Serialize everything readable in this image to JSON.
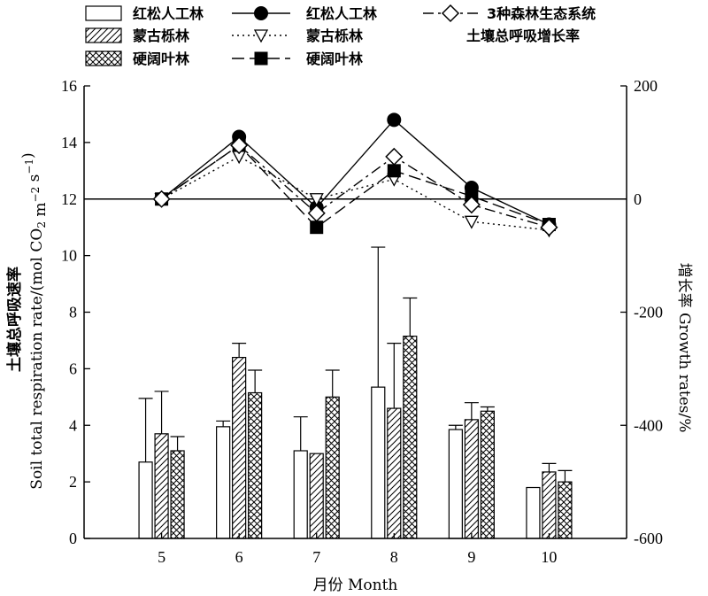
{
  "chart_data": {
    "type": "bar",
    "categories": [
      "5",
      "6",
      "7",
      "8",
      "9",
      "10"
    ],
    "xlabel": "月份 Month",
    "ylabel_cn": "土壤总呼吸速率",
    "ylabel_en_prefix": "Soil total respiration rate/(mol CO",
    "ylabel_sub2": "2",
    "ylabel_mid": " m",
    "ylabel_sup1": "−2",
    "ylabel_mid2": " s",
    "ylabel_sup2": "−1",
    "ylabel_end": ")",
    "y2label": "增长率 Growth rates/%",
    "ylim": [
      0,
      16
    ],
    "yticks": [
      "0",
      "2",
      "4",
      "6",
      "8",
      "10",
      "12",
      "14",
      "16"
    ],
    "y2lim": [
      -600,
      200
    ],
    "y2ticks": [
      "-600",
      "-400",
      "-200",
      "0",
      "200"
    ],
    "bar_series": [
      {
        "name": "红松人工林",
        "pattern": "open",
        "values": [
          2.7,
          3.95,
          3.1,
          5.35,
          3.85,
          1.8
        ],
        "errors": [
          2.25,
          0.2,
          1.2,
          4.95,
          0.15,
          0.0
        ]
      },
      {
        "name": "蒙古栎林",
        "pattern": "diagonal",
        "values": [
          3.7,
          6.4,
          3.0,
          4.6,
          4.2,
          2.35
        ],
        "errors": [
          1.5,
          0.5,
          0.0,
          2.3,
          0.6,
          0.3
        ]
      },
      {
        "name": "硬阔叶林",
        "pattern": "crosshatch",
        "values": [
          3.1,
          5.15,
          5.0,
          7.15,
          4.5,
          2.0
        ],
        "errors": [
          0.5,
          0.8,
          0.95,
          1.35,
          0.15,
          0.4
        ]
      }
    ],
    "line_series": [
      {
        "name": "红松人工林",
        "marker": "filled-circle",
        "dash": "solid",
        "values": [
          0,
          110,
          -15,
          140,
          20,
          -45
        ]
      },
      {
        "name": "蒙古栎林",
        "marker": "open-triangle-down",
        "dash": "dotted",
        "values": [
          0,
          75,
          0,
          35,
          -40,
          -55
        ]
      },
      {
        "name": "硬阔叶林",
        "marker": "filled-square",
        "dash": "long-dash",
        "values": [
          0,
          95,
          -50,
          50,
          5,
          -45
        ]
      },
      {
        "name": "3种森林生态系统",
        "name_line2": "土壤总呼吸增长率",
        "marker": "open-diamond",
        "dash": "dash-dot",
        "values": [
          0,
          95,
          -25,
          75,
          -10,
          -50
        ]
      }
    ]
  }
}
